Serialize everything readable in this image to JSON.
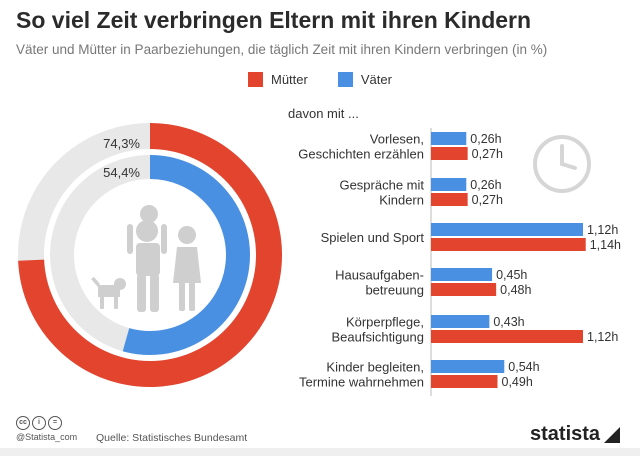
{
  "title": "So viel Zeit verbringen Eltern mit ihren Kindern",
  "subtitle": "Väter und Mütter in Paarbeziehungen, die täglich Zeit mit ihren Kindern verbringen (in %)",
  "legend": {
    "mothers": "Mütter",
    "fathers": "Väter"
  },
  "colors": {
    "mothers": "#e2442e",
    "fathers": "#4a90e2",
    "track": "#e8e8e8",
    "figures": "#cfcfcf"
  },
  "davon_label": "davon mit ...",
  "footer": {
    "handle": "@Statista_com",
    "source": "Quelle: Statistisches Bundesamt",
    "logo": "statista"
  },
  "chart_data": [
    {
      "type": "pie",
      "series": [
        {
          "name": "Mütter",
          "value": 74.3,
          "label": "74,3%"
        },
        {
          "name": "Väter",
          "value": 54.4,
          "label": "54,4%"
        }
      ]
    },
    {
      "type": "bar",
      "orientation": "horizontal",
      "categories": [
        "Vorlesen, Geschichten erzählen",
        "Gespräche mit Kindern",
        "Spielen und Sport",
        "Hausaufgaben-betreuung",
        "Körperpflege, Beaufsichtigung",
        "Kinder begleiten, Termine wahrnehmen"
      ],
      "category_lines": [
        [
          "Vorlesen,",
          "Geschichten erzählen"
        ],
        [
          "Gespräche mit",
          "Kindern"
        ],
        [
          "Spielen und Sport"
        ],
        [
          "Hausaufgaben-",
          "betreuung"
        ],
        [
          "Körperpflege,",
          "Beaufsichtigung"
        ],
        [
          "Kinder begleiten,",
          "Termine wahrnehmen"
        ]
      ],
      "series": [
        {
          "name": "Väter",
          "values": [
            0.26,
            0.26,
            1.12,
            0.45,
            0.43,
            0.54
          ],
          "labels": [
            "0,26h",
            "0,26h",
            "1,12h",
            "0,45h",
            "0,43h",
            "0,54h"
          ]
        },
        {
          "name": "Mütter",
          "values": [
            0.27,
            0.27,
            1.14,
            0.48,
            1.12,
            0.49
          ],
          "labels": [
            "0,27h",
            "0,27h",
            "1,14h",
            "0,48h",
            "1,12h",
            "0,49h"
          ]
        }
      ]
    }
  ]
}
